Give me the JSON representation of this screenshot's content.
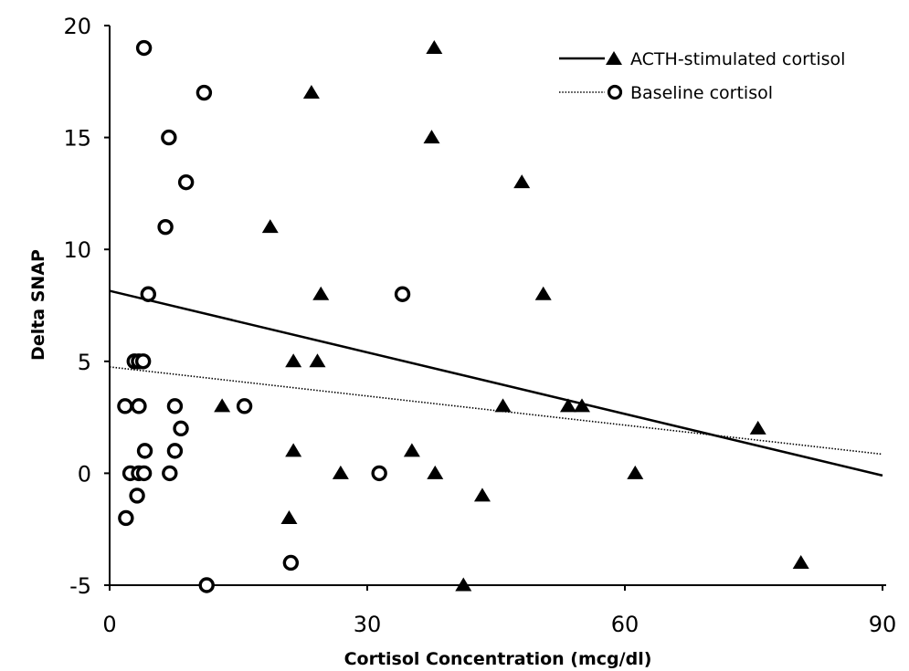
{
  "chart_data": {
    "type": "scatter",
    "xlabel": "Cortisol Concentration (mcg/dl)",
    "ylabel": "Delta SNAP",
    "xlim": [
      0,
      90
    ],
    "ylim": [
      -5,
      20
    ],
    "x_ticks": [
      0,
      30,
      60,
      90
    ],
    "y_ticks": [
      -5,
      0,
      5,
      10,
      15,
      20
    ],
    "grid": false,
    "legend_position": "top-right",
    "series": [
      {
        "name": "ACTH-stimulated cortisol",
        "marker": "filled-triangle",
        "line_style": "solid",
        "points": [
          {
            "x": 37.8,
            "y": 19
          },
          {
            "x": 23.5,
            "y": 17
          },
          {
            "x": 37.5,
            "y": 15
          },
          {
            "x": 48.0,
            "y": 13
          },
          {
            "x": 18.7,
            "y": 11
          },
          {
            "x": 24.6,
            "y": 8
          },
          {
            "x": 50.5,
            "y": 8
          },
          {
            "x": 21.4,
            "y": 5
          },
          {
            "x": 24.2,
            "y": 5
          },
          {
            "x": 13.1,
            "y": 3
          },
          {
            "x": 45.8,
            "y": 3
          },
          {
            "x": 53.4,
            "y": 3
          },
          {
            "x": 55.0,
            "y": 3
          },
          {
            "x": 75.5,
            "y": 2
          },
          {
            "x": 21.4,
            "y": 1
          },
          {
            "x": 35.2,
            "y": 1
          },
          {
            "x": 26.9,
            "y": 0
          },
          {
            "x": 37.9,
            "y": 0
          },
          {
            "x": 61.2,
            "y": 0
          },
          {
            "x": 43.4,
            "y": -1
          },
          {
            "x": 20.9,
            "y": -2
          },
          {
            "x": 80.5,
            "y": -4
          },
          {
            "x": 41.2,
            "y": -5
          }
        ],
        "trend": {
          "x": [
            0,
            90
          ],
          "y": [
            8.15,
            -0.1
          ]
        }
      },
      {
        "name": "Baseline cortisol",
        "marker": "open-circle",
        "line_style": "dotted",
        "points": [
          {
            "x": 4.0,
            "y": 19
          },
          {
            "x": 11.0,
            "y": 17
          },
          {
            "x": 6.9,
            "y": 15
          },
          {
            "x": 8.9,
            "y": 13
          },
          {
            "x": 6.5,
            "y": 11
          },
          {
            "x": 4.5,
            "y": 8
          },
          {
            "x": 34.1,
            "y": 8
          },
          {
            "x": 2.9,
            "y": 5
          },
          {
            "x": 3.4,
            "y": 5
          },
          {
            "x": 3.9,
            "y": 5
          },
          {
            "x": 1.8,
            "y": 3
          },
          {
            "x": 3.4,
            "y": 3
          },
          {
            "x": 7.6,
            "y": 3
          },
          {
            "x": 15.7,
            "y": 3
          },
          {
            "x": 8.3,
            "y": 2
          },
          {
            "x": 4.1,
            "y": 1
          },
          {
            "x": 7.6,
            "y": 1
          },
          {
            "x": 2.4,
            "y": 0
          },
          {
            "x": 3.4,
            "y": 0
          },
          {
            "x": 4.0,
            "y": 0
          },
          {
            "x": 7.0,
            "y": 0
          },
          {
            "x": 31.4,
            "y": 0
          },
          {
            "x": 3.2,
            "y": -1
          },
          {
            "x": 1.9,
            "y": -2
          },
          {
            "x": 21.1,
            "y": -4
          },
          {
            "x": 11.3,
            "y": -5
          }
        ],
        "trend": {
          "x": [
            0,
            90
          ],
          "y": [
            4.75,
            0.85
          ]
        }
      }
    ]
  }
}
